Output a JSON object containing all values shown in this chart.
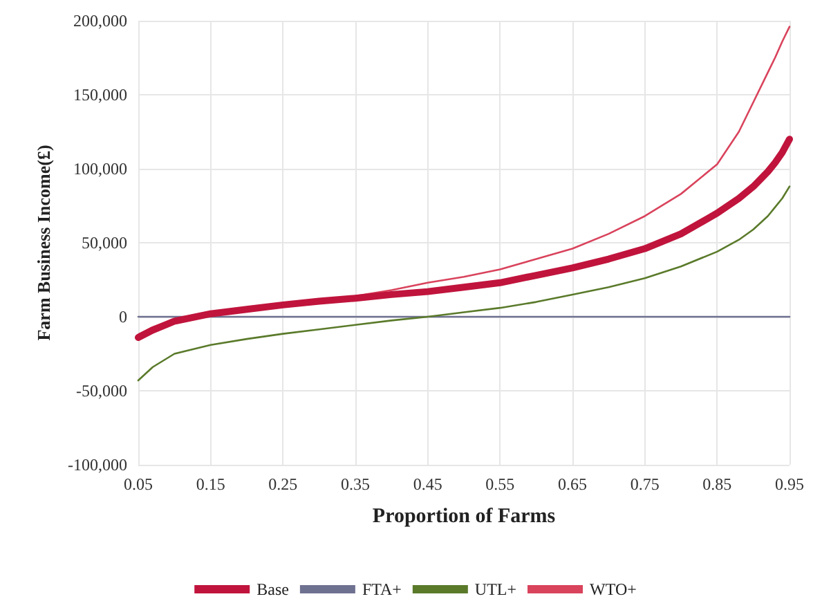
{
  "chart_data": {
    "type": "line",
    "xlabel": "Proportion of Farms",
    "ylabel": "Farm Business Income(£)",
    "x": [
      0.05,
      0.07,
      0.1,
      0.15,
      0.2,
      0.25,
      0.3,
      0.35,
      0.4,
      0.45,
      0.5,
      0.55,
      0.6,
      0.65,
      0.7,
      0.75,
      0.8,
      0.85,
      0.88,
      0.9,
      0.92,
      0.93,
      0.94,
      0.95
    ],
    "series": [
      {
        "name": "Base",
        "color": "#c0143c",
        "values": [
          -14000,
          -9000,
          -3000,
          2000,
          5000,
          8000,
          10500,
          12500,
          15000,
          17000,
          20000,
          23000,
          28000,
          33000,
          39000,
          46000,
          56000,
          70000,
          80000,
          88000,
          98000,
          104000,
          111000,
          120000
        ]
      },
      {
        "name": "FTA+",
        "color": "#6f7191",
        "values": [
          0,
          0,
          0,
          0,
          0,
          0,
          0,
          0,
          0,
          0,
          0,
          0,
          0,
          0,
          0,
          0,
          0,
          0,
          0,
          0,
          0,
          0,
          0,
          0
        ]
      },
      {
        "name": "UTL+",
        "color": "#5a7a2a",
        "values": [
          -43000,
          -34000,
          -25000,
          -19000,
          -15000,
          -11500,
          -8500,
          -5500,
          -2500,
          0,
          3000,
          6000,
          10000,
          15000,
          20000,
          26000,
          34000,
          44000,
          52000,
          59000,
          68000,
          74000,
          80000,
          88000
        ]
      },
      {
        "name": "WTO+",
        "color": "#d9435c",
        "values": [
          -12000,
          -7000,
          -1500,
          2500,
          6000,
          9000,
          11500,
          14000,
          18000,
          23000,
          27000,
          32000,
          39000,
          46000,
          56000,
          68000,
          83000,
          103000,
          125000,
          145000,
          165000,
          175000,
          186000,
          196000
        ]
      }
    ],
    "xlim": [
      0.05,
      0.95
    ],
    "xticks": [
      0.05,
      0.15,
      0.25,
      0.35,
      0.45,
      0.55,
      0.65,
      0.75,
      0.85,
      0.95
    ],
    "ylim": [
      -100000,
      200000
    ],
    "yticks": [
      {
        "value": -100000,
        "label": "-100,000"
      },
      {
        "value": -50000,
        "label": "-50,000"
      },
      {
        "value": 0,
        "label": "0"
      },
      {
        "value": 50000,
        "label": "50,000"
      },
      {
        "value": 100000,
        "label": "100,000"
      },
      {
        "value": 150000,
        "label": "150,000"
      },
      {
        "value": 200000,
        "label": "200,000"
      }
    ],
    "grid": true,
    "legend": "bottom",
    "marker": "none",
    "line_style": "solid"
  }
}
